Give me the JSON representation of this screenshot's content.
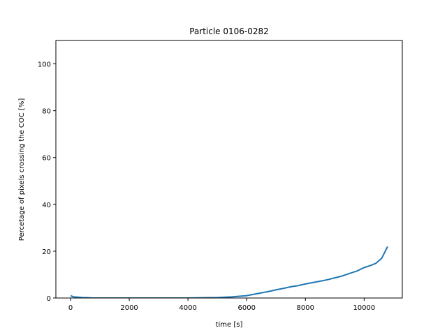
{
  "chart_data": {
    "type": "line",
    "title": "Particle 0106-0282",
    "xlabel": "time [s]",
    "ylabel": "Percetage of pixels crossing the COC [%]",
    "xlim": [
      -500,
      11300
    ],
    "ylim": [
      0,
      110
    ],
    "x_ticks": [
      0,
      2000,
      4000,
      6000,
      8000,
      10000
    ],
    "y_ticks": [
      0,
      20,
      40,
      60,
      80,
      100
    ],
    "x_tick_labels": [
      "0",
      "2000",
      "4000",
      "6000",
      "8000",
      "10000"
    ],
    "y_tick_labels": [
      "0",
      "20",
      "40",
      "60",
      "80",
      "100"
    ],
    "grid": false,
    "legend": "none",
    "line_color": "#1f77b4",
    "series": [
      {
        "x": [
          0,
          100,
          200,
          400,
          600,
          800,
          1000,
          1500,
          2000,
          2500,
          3000,
          3500,
          4000,
          4500,
          5000,
          5500,
          6000,
          6250,
          6500,
          6750,
          7000,
          7250,
          7500,
          7750,
          8000,
          8250,
          8500,
          8750,
          9000,
          9250,
          9500,
          9750,
          10000,
          10200,
          10400,
          10600,
          10700,
          10800
        ],
        "y": [
          1.0,
          0.5,
          0.4,
          0.2,
          0.1,
          0.0,
          0.0,
          0.0,
          0.0,
          0.0,
          0.0,
          0.0,
          0.0,
          0.1,
          0.2,
          0.5,
          1.0,
          1.6,
          2.2,
          2.8,
          3.5,
          4.1,
          4.8,
          5.3,
          6.0,
          6.6,
          7.2,
          7.8,
          8.6,
          9.4,
          10.5,
          11.5,
          13.0,
          13.8,
          14.8,
          17.0,
          19.5,
          22.0
        ]
      }
    ]
  }
}
